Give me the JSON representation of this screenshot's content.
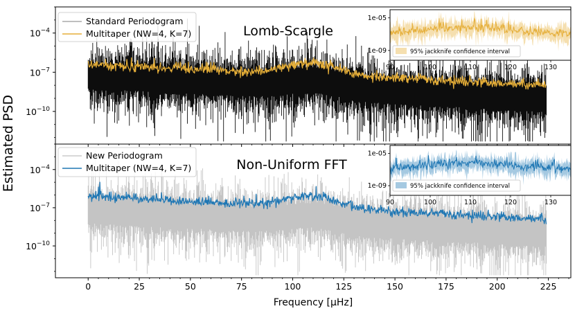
{
  "figure": {
    "ylabel": "Estimated PSD",
    "xlabel": "Frequency [μHz]",
    "x_ticks": [
      "0",
      "25",
      "50",
      "75",
      "100",
      "125",
      "150",
      "175",
      "200",
      "225"
    ]
  },
  "chart_data": [
    {
      "type": "line",
      "title": "Lomb-Scargle",
      "xlabel": "Frequency [μHz]",
      "ylabel": "Estimated PSD",
      "xlim": [
        -16,
        236
      ],
      "ylim_log10": [
        -12.5,
        -2.0
      ],
      "y_ticks": [
        {
          "exp": -4,
          "label": "10^-4"
        },
        {
          "exp": -7,
          "label": "10^-7"
        },
        {
          "exp": -10,
          "label": "10^-10"
        }
      ],
      "legend": [
        "Standard Periodogram",
        "Multitaper (NW=4, K=7)"
      ],
      "legend_position": "top-left",
      "series": [
        {
          "name": "Standard Periodogram",
          "color": "#000000",
          "x_range": [
            0,
            224
          ],
          "median_log10_start": -7.1,
          "median_log10_end": -8.9,
          "spread_log10": 1.4
        },
        {
          "name": "Multitaper (NW=4, K=7)",
          "color": "#e5ae38",
          "x_range": [
            0,
            224
          ],
          "log10_start": -6.4,
          "log10_end": -8.0
        }
      ],
      "inset": {
        "xlim": [
          90,
          135
        ],
        "x_ticks": [
          "90",
          "100",
          "110",
          "120",
          "130"
        ],
        "y_ticks": [
          {
            "exp": -5,
            "label": "1e-05"
          },
          {
            "exp": -9,
            "label": "1e-09"
          }
        ],
        "ylim_log10": [
          -10.2,
          -4.0
        ],
        "legend": "95% jackknife confidence interval",
        "color": "#e5ae38"
      }
    },
    {
      "type": "line",
      "title": "Non-Uniform FFT",
      "xlabel": "Frequency [μHz]",
      "ylabel": "Estimated PSD",
      "xlim": [
        -16,
        236
      ],
      "ylim_log10": [
        -12.5,
        -2.0
      ],
      "y_ticks": [
        {
          "exp": -4,
          "label": "10^-4"
        },
        {
          "exp": -7,
          "label": "10^-7"
        },
        {
          "exp": -10,
          "label": "10^-10"
        }
      ],
      "legend": [
        "New Periodogram",
        "Multitaper (NW=4, K=7)"
      ],
      "legend_position": "top-left",
      "series": [
        {
          "name": "New Periodogram",
          "color": "#b0b0b0",
          "x_range": [
            0,
            224
          ],
          "median_log10_start": -7.1,
          "median_log10_end": -8.9,
          "spread_log10": 1.4
        },
        {
          "name": "Multitaper (NW=4, K=7)",
          "color": "#1f77b4",
          "x_range": [
            0,
            224
          ],
          "log10_start": -6.1,
          "log10_end": -7.9
        }
      ],
      "inset": {
        "xlim": [
          90,
          135
        ],
        "x_ticks": [
          "90",
          "100",
          "110",
          "120",
          "130"
        ],
        "y_ticks": [
          {
            "exp": -5,
            "label": "1e-05"
          },
          {
            "exp": -9,
            "label": "1e-09"
          }
        ],
        "ylim_log10": [
          -10.2,
          -4.0
        ],
        "legend": "95% jackknife confidence interval",
        "color": "#1f77b4"
      }
    }
  ]
}
